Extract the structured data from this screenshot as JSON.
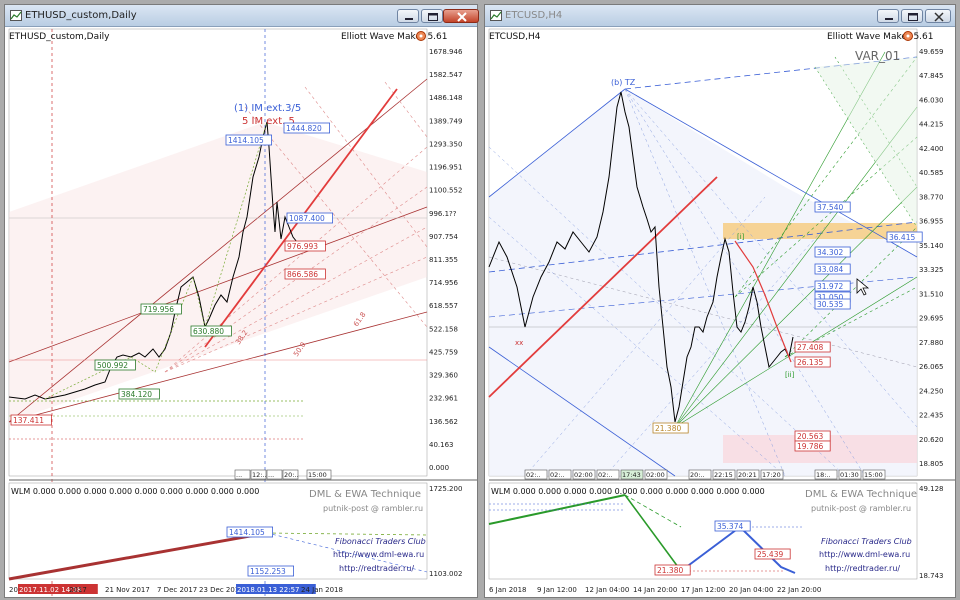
{
  "left_window": {
    "title": "ETHUSD_custom,Daily",
    "chart_label": "ETHUSD_custom,Daily",
    "indicator_label": "Elliott Wave Maker 5.61",
    "wave_annotation_1": "(1) IM ext.3/5",
    "wave_annotation_2": "5 IM ext. 5",
    "price_axis": [
      "1678.946",
      "1582.547",
      "1486.148",
      "1389.749",
      "1293.350",
      "1196.951",
      "1100.552",
      "996.1??",
      "907.754",
      "811.355",
      "714.956",
      "618.557",
      "522.158",
      "425.759",
      "329.360",
      "232.961",
      "136.562",
      "40.163",
      "0.000"
    ],
    "price_tags": [
      "1444.820",
      "1414.105",
      "1087.400",
      "976.993",
      "866.586",
      "719.956",
      "630.880",
      "500.992",
      "384.120",
      "137.411"
    ],
    "wave_labels": [
      "(1)",
      "[5]",
      "[3]",
      "[1]",
      "[2]",
      "[4]",
      "3",
      "5",
      "1",
      "2",
      "4"
    ],
    "fib_labels": [
      "38.2",
      "50.0",
      "61.8"
    ],
    "time_boxes": [
      "...",
      "12:..",
      "...",
      "20:..",
      "15:00"
    ],
    "sub_indicator": "WLM 0.000 0.000 0.000 0.000 0.000 0.000 0.000 0.000 0.000",
    "sub_axis": [
      "1725.200",
      "1103.002"
    ],
    "sub_tags": [
      "1414.105",
      "1152.253"
    ],
    "watermark_1": "DML & EWA Technique",
    "watermark_2": "putnik-post @ rambler.ru",
    "club_text": "Fibonacci   Traders   Club",
    "site_1": "http://www.dml-ewa.ru",
    "site_2": "http://redtrader.ru/",
    "x_axis": [
      "20",
      "2017.11.02 14:18",
      "2017",
      "21 Nov 2017",
      "7 Dec 2017",
      "23 Dec 2017",
      "2018.01.13 22:57",
      "24 Jan 2018"
    ]
  },
  "right_window": {
    "title": "ETCUSD,H4",
    "chart_label": "ETCUSD,H4",
    "indicator_label": "Elliott Wave Maker 5.61",
    "var_label": "VAR_01",
    "top_label": "(b) TZ",
    "price_axis": [
      "49.659",
      "47.845",
      "46.030",
      "44.215",
      "42.400",
      "40.585",
      "38.770",
      "36.955",
      "35.140",
      "33.325",
      "31.510",
      "29.695",
      "27.880",
      "26.065",
      "24.250",
      "22.435",
      "20.620",
      "18.805"
    ],
    "price_tags": [
      "37.540",
      "36.415",
      "34.302",
      "33.084",
      "31.972",
      "31.050",
      "30.535",
      "27.408",
      "26.135",
      "20.563",
      "19.786",
      "21.380"
    ],
    "wave_labels": [
      "(b)",
      "[5]",
      "[i]",
      "[ii]",
      "xx"
    ],
    "time_boxes": [
      "02:..",
      "02:..",
      "02:00",
      "02:..",
      "17:43",
      "02:00",
      "20:..",
      "22:15",
      "20:21",
      "17:20",
      "18:..",
      "01:30",
      "15:00",
      "15:00"
    ],
    "sub_indicator": "WLM 0.000 0.000 0.000 0.000 0.000 0.000 0.000 0.000 0.000 0.000",
    "sub_axis": [
      "49.128",
      "18.743"
    ],
    "sub_tags": [
      "35.374",
      "25.439",
      "21.380"
    ],
    "watermark_1": "DML & EWA Technique",
    "watermark_2": "putnik-post @ rambler.ru",
    "club_text": "Fibonacci   Traders   Club",
    "site_1": "http://www.dml-ewa.ru",
    "site_2": "http://redtrader.ru/",
    "x_axis": [
      "6 Jan 2018",
      "9 Jan 12:00",
      "12 Jan 04:00",
      "14 Jan 20:00",
      "17 Jan 12:00",
      "20 Jan 04:00",
      "22 Jan 20:00"
    ]
  },
  "colors": {
    "bull_line": "#e23c3c",
    "channel": "#a83232",
    "blue_line": "#3a5fd6",
    "green_line": "#2a9a2a",
    "zone_orange": "#f7c46a",
    "zone_pink": "#f9d6dc"
  }
}
